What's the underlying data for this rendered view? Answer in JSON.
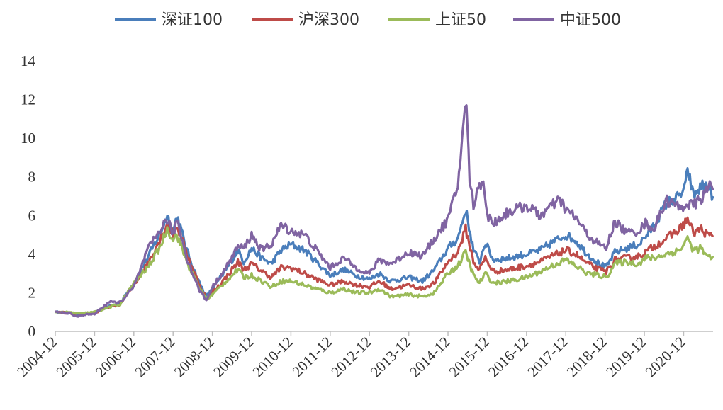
{
  "chart_data": {
    "type": "line",
    "title": "",
    "xlabel": "",
    "ylabel": "",
    "ylim": [
      0,
      14
    ],
    "yticks": [
      0,
      2,
      4,
      6,
      8,
      10,
      12,
      14
    ],
    "x_tick_labels": [
      "2004-12",
      "2005-12",
      "2006-12",
      "2007-12",
      "2008-12",
      "2009-12",
      "2010-12",
      "2011-12",
      "2012-12",
      "2013-12",
      "2014-12",
      "2015-12",
      "2016-12",
      "2017-12",
      "2018-12",
      "2019-12",
      "2020-12"
    ],
    "x_range": [
      2004.95,
      2021.7
    ],
    "legend_position": "top",
    "series": [
      {
        "name": "深证100",
        "color": "#4a7ebb",
        "points": [
          [
            2004.95,
            1.0
          ],
          [
            2005.3,
            0.95
          ],
          [
            2005.6,
            0.88
          ],
          [
            2005.95,
            0.95
          ],
          [
            2006.3,
            1.3
          ],
          [
            2006.6,
            1.45
          ],
          [
            2006.95,
            2.5
          ],
          [
            2007.3,
            3.8
          ],
          [
            2007.6,
            5.0
          ],
          [
            2007.8,
            6.0
          ],
          [
            2007.95,
            5.2
          ],
          [
            2008.05,
            6.0
          ],
          [
            2008.3,
            4.2
          ],
          [
            2008.6,
            2.6
          ],
          [
            2008.8,
            1.8
          ],
          [
            2008.95,
            2.2
          ],
          [
            2009.3,
            3.2
          ],
          [
            2009.6,
            4.2
          ],
          [
            2009.75,
            3.6
          ],
          [
            2009.95,
            4.3
          ],
          [
            2010.2,
            3.8
          ],
          [
            2010.45,
            3.5
          ],
          [
            2010.7,
            4.2
          ],
          [
            2010.95,
            4.5
          ],
          [
            2011.3,
            4.2
          ],
          [
            2011.6,
            3.6
          ],
          [
            2011.95,
            2.9
          ],
          [
            2012.3,
            3.2
          ],
          [
            2012.6,
            2.9
          ],
          [
            2012.95,
            2.7
          ],
          [
            2013.2,
            3.0
          ],
          [
            2013.5,
            2.6
          ],
          [
            2013.95,
            2.8
          ],
          [
            2014.3,
            2.6
          ],
          [
            2014.6,
            3.2
          ],
          [
            2014.95,
            4.3
          ],
          [
            2015.2,
            4.8
          ],
          [
            2015.4,
            6.3
          ],
          [
            2015.6,
            4.2
          ],
          [
            2015.75,
            3.6
          ],
          [
            2015.9,
            4.6
          ],
          [
            2016.1,
            3.7
          ],
          [
            2016.5,
            3.8
          ],
          [
            2016.95,
            4.0
          ],
          [
            2017.3,
            4.2
          ],
          [
            2017.6,
            4.6
          ],
          [
            2017.95,
            5.0
          ],
          [
            2018.2,
            4.7
          ],
          [
            2018.5,
            4.0
          ],
          [
            2018.8,
            3.5
          ],
          [
            2018.98,
            3.3
          ],
          [
            2019.2,
            4.1
          ],
          [
            2019.5,
            4.3
          ],
          [
            2019.8,
            4.5
          ],
          [
            2019.98,
            4.9
          ],
          [
            2020.2,
            5.5
          ],
          [
            2020.5,
            6.6
          ],
          [
            2020.85,
            7.0
          ],
          [
            2021.0,
            7.5
          ],
          [
            2021.05,
            8.4
          ],
          [
            2021.2,
            7.0
          ],
          [
            2021.4,
            7.5
          ],
          [
            2021.55,
            7.6
          ],
          [
            2021.7,
            7.0
          ]
        ]
      },
      {
        "name": "沪深300",
        "color": "#be4b48",
        "points": [
          [
            2004.95,
            1.0
          ],
          [
            2005.3,
            0.95
          ],
          [
            2005.6,
            0.88
          ],
          [
            2005.95,
            0.95
          ],
          [
            2006.3,
            1.25
          ],
          [
            2006.6,
            1.4
          ],
          [
            2006.95,
            2.4
          ],
          [
            2007.3,
            3.5
          ],
          [
            2007.6,
            4.7
          ],
          [
            2007.8,
            5.6
          ],
          [
            2007.95,
            5.0
          ],
          [
            2008.05,
            5.5
          ],
          [
            2008.3,
            4.0
          ],
          [
            2008.6,
            2.5
          ],
          [
            2008.8,
            1.7
          ],
          [
            2008.95,
            2.0
          ],
          [
            2009.3,
            2.8
          ],
          [
            2009.6,
            3.6
          ],
          [
            2009.75,
            3.2
          ],
          [
            2009.95,
            3.5
          ],
          [
            2010.3,
            3.0
          ],
          [
            2010.45,
            2.8
          ],
          [
            2010.7,
            3.3
          ],
          [
            2010.95,
            3.3
          ],
          [
            2011.3,
            3.0
          ],
          [
            2011.6,
            2.7
          ],
          [
            2011.95,
            2.4
          ],
          [
            2012.3,
            2.6
          ],
          [
            2012.6,
            2.4
          ],
          [
            2012.95,
            2.3
          ],
          [
            2013.2,
            2.6
          ],
          [
            2013.5,
            2.2
          ],
          [
            2013.95,
            2.4
          ],
          [
            2014.3,
            2.2
          ],
          [
            2014.6,
            2.5
          ],
          [
            2014.95,
            3.6
          ],
          [
            2015.2,
            4.1
          ],
          [
            2015.4,
            5.3
          ],
          [
            2015.6,
            3.6
          ],
          [
            2015.75,
            3.2
          ],
          [
            2015.9,
            3.8
          ],
          [
            2016.1,
            3.1
          ],
          [
            2016.5,
            3.2
          ],
          [
            2016.95,
            3.4
          ],
          [
            2017.3,
            3.6
          ],
          [
            2017.6,
            3.9
          ],
          [
            2017.95,
            4.2
          ],
          [
            2018.2,
            4.0
          ],
          [
            2018.5,
            3.5
          ],
          [
            2018.8,
            3.2
          ],
          [
            2018.98,
            3.1
          ],
          [
            2019.2,
            3.7
          ],
          [
            2019.5,
            3.8
          ],
          [
            2019.8,
            3.9
          ],
          [
            2019.98,
            4.1
          ],
          [
            2020.2,
            4.4
          ],
          [
            2020.5,
            4.8
          ],
          [
            2020.85,
            5.3
          ],
          [
            2021.05,
            5.8
          ],
          [
            2021.2,
            5.1
          ],
          [
            2021.4,
            5.3
          ],
          [
            2021.55,
            5.0
          ],
          [
            2021.7,
            4.9
          ]
        ]
      },
      {
        "name": "上证50",
        "color": "#9bbb59",
        "points": [
          [
            2004.95,
            1.0
          ],
          [
            2005.3,
            0.98
          ],
          [
            2005.6,
            0.92
          ],
          [
            2005.95,
            1.0
          ],
          [
            2006.3,
            1.25
          ],
          [
            2006.6,
            1.4
          ],
          [
            2006.95,
            2.5
          ],
          [
            2007.3,
            3.3
          ],
          [
            2007.6,
            4.3
          ],
          [
            2007.8,
            5.3
          ],
          [
            2007.95,
            4.8
          ],
          [
            2008.05,
            5.0
          ],
          [
            2008.3,
            3.6
          ],
          [
            2008.6,
            2.3
          ],
          [
            2008.8,
            1.7
          ],
          [
            2008.95,
            1.9
          ],
          [
            2009.3,
            2.6
          ],
          [
            2009.6,
            3.2
          ],
          [
            2009.75,
            2.8
          ],
          [
            2009.95,
            2.9
          ],
          [
            2010.3,
            2.5
          ],
          [
            2010.45,
            2.3
          ],
          [
            2010.7,
            2.6
          ],
          [
            2010.95,
            2.6
          ],
          [
            2011.3,
            2.4
          ],
          [
            2011.6,
            2.2
          ],
          [
            2011.95,
            2.0
          ],
          [
            2012.3,
            2.2
          ],
          [
            2012.6,
            2.0
          ],
          [
            2012.95,
            2.0
          ],
          [
            2013.2,
            2.2
          ],
          [
            2013.5,
            1.8
          ],
          [
            2013.95,
            1.9
          ],
          [
            2014.3,
            1.8
          ],
          [
            2014.6,
            2.0
          ],
          [
            2014.95,
            3.0
          ],
          [
            2015.2,
            3.4
          ],
          [
            2015.4,
            4.1
          ],
          [
            2015.6,
            2.9
          ],
          [
            2015.75,
            2.5
          ],
          [
            2015.9,
            3.0
          ],
          [
            2016.1,
            2.5
          ],
          [
            2016.5,
            2.6
          ],
          [
            2016.95,
            2.8
          ],
          [
            2017.3,
            3.1
          ],
          [
            2017.6,
            3.4
          ],
          [
            2017.95,
            3.7
          ],
          [
            2018.2,
            3.4
          ],
          [
            2018.5,
            3.0
          ],
          [
            2018.8,
            2.9
          ],
          [
            2018.98,
            2.8
          ],
          [
            2019.2,
            3.5
          ],
          [
            2019.5,
            3.6
          ],
          [
            2019.8,
            3.5
          ],
          [
            2019.98,
            3.8
          ],
          [
            2020.2,
            3.8
          ],
          [
            2020.5,
            4.0
          ],
          [
            2020.85,
            4.2
          ],
          [
            2021.05,
            4.8
          ],
          [
            2021.2,
            4.2
          ],
          [
            2021.4,
            4.3
          ],
          [
            2021.55,
            3.8
          ],
          [
            2021.7,
            3.9
          ]
        ]
      },
      {
        "name": "中证500",
        "color": "#8064a2",
        "points": [
          [
            2004.95,
            1.0
          ],
          [
            2005.3,
            0.95
          ],
          [
            2005.5,
            0.75
          ],
          [
            2005.6,
            0.85
          ],
          [
            2005.95,
            0.9
          ],
          [
            2006.3,
            1.5
          ],
          [
            2006.6,
            1.5
          ],
          [
            2006.95,
            2.3
          ],
          [
            2007.3,
            4.2
          ],
          [
            2007.6,
            5.2
          ],
          [
            2007.8,
            5.8
          ],
          [
            2007.95,
            5.0
          ],
          [
            2008.05,
            5.8
          ],
          [
            2008.3,
            3.8
          ],
          [
            2008.6,
            2.2
          ],
          [
            2008.8,
            1.6
          ],
          [
            2008.95,
            2.3
          ],
          [
            2009.3,
            3.3
          ],
          [
            2009.6,
            4.4
          ],
          [
            2009.75,
            4.3
          ],
          [
            2009.95,
            5.0
          ],
          [
            2010.2,
            4.2
          ],
          [
            2010.45,
            4.5
          ],
          [
            2010.7,
            5.5
          ],
          [
            2010.95,
            5.2
          ],
          [
            2011.3,
            5.0
          ],
          [
            2011.6,
            4.2
          ],
          [
            2011.95,
            3.3
          ],
          [
            2012.3,
            3.8
          ],
          [
            2012.6,
            3.3
          ],
          [
            2012.95,
            3.0
          ],
          [
            2013.2,
            3.7
          ],
          [
            2013.5,
            3.5
          ],
          [
            2013.95,
            4.1
          ],
          [
            2014.3,
            3.9
          ],
          [
            2014.6,
            4.8
          ],
          [
            2014.95,
            5.8
          ],
          [
            2015.2,
            7.5
          ],
          [
            2015.35,
            11.0
          ],
          [
            2015.42,
            11.6
          ],
          [
            2015.5,
            8.0
          ],
          [
            2015.6,
            6.5
          ],
          [
            2015.75,
            7.6
          ],
          [
            2015.85,
            7.9
          ],
          [
            2015.95,
            6.0
          ],
          [
            2016.1,
            5.6
          ],
          [
            2016.5,
            6.2
          ],
          [
            2016.95,
            6.5
          ],
          [
            2017.3,
            6.0
          ],
          [
            2017.6,
            6.5
          ],
          [
            2017.8,
            6.8
          ],
          [
            2017.95,
            6.3
          ],
          [
            2018.2,
            5.9
          ],
          [
            2018.5,
            5.0
          ],
          [
            2018.8,
            4.5
          ],
          [
            2018.98,
            4.3
          ],
          [
            2019.2,
            5.7
          ],
          [
            2019.5,
            5.1
          ],
          [
            2019.8,
            5.2
          ],
          [
            2019.98,
            5.6
          ],
          [
            2020.2,
            5.3
          ],
          [
            2020.5,
            6.8
          ],
          [
            2020.85,
            6.4
          ],
          [
            2021.05,
            6.6
          ],
          [
            2021.2,
            6.5
          ],
          [
            2021.4,
            6.9
          ],
          [
            2021.55,
            7.3
          ],
          [
            2021.65,
            7.7
          ],
          [
            2021.7,
            7.3
          ]
        ]
      }
    ]
  }
}
